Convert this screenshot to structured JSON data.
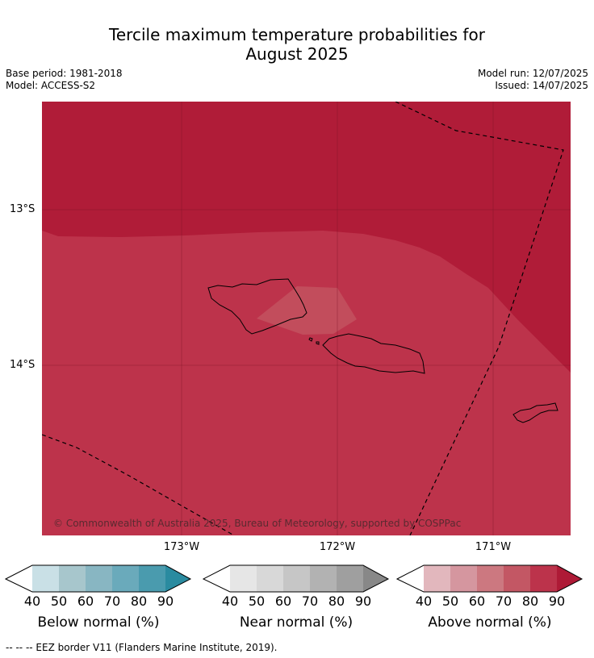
{
  "title_line1": "Tercile maximum temperature probabilities for",
  "title_line2": "August 2025",
  "base_period": "Base period: 1981-2018",
  "model": "Model: ACCESS-S2",
  "model_run": "Model run: 12/07/2025",
  "issued": "Issued: 14/07/2025",
  "map": {
    "lat_labels": [
      "13°S",
      "14°S"
    ],
    "lon_labels": [
      "173°W",
      "172°W",
      "171°W"
    ],
    "copyright": "© Commonwealth of Australia 2025, Bureau of Meteorology, supported by COSPPac",
    "fill_colors": {
      "above_90": "#b01c38",
      "above_80": "#bd334b",
      "above_70": "#c24d5c"
    }
  },
  "colorbars": [
    {
      "title": "Below normal (%)",
      "ticks": [
        "40",
        "50",
        "60",
        "70",
        "80",
        "90"
      ],
      "colors": [
        "#ffffff",
        "#c9e0e6",
        "#a7c6cc",
        "#88b6c2",
        "#6aaabb",
        "#4a9bae",
        "#2a8ba0"
      ]
    },
    {
      "title": "Near normal (%)",
      "ticks": [
        "40",
        "50",
        "60",
        "70",
        "80",
        "90"
      ],
      "colors": [
        "#ffffff",
        "#e6e6e6",
        "#d8d8d8",
        "#c6c6c6",
        "#b2b2b2",
        "#9f9f9f",
        "#888888"
      ]
    },
    {
      "title": "Above normal (%)",
      "ticks": [
        "40",
        "50",
        "60",
        "70",
        "80",
        "90"
      ],
      "colors": [
        "#ffffff",
        "#e2b7bd",
        "#d5969f",
        "#cc7880",
        "#c35764",
        "#bc334b",
        "#ae1a36"
      ]
    }
  ],
  "footer": "-- -- -- EEZ border V11 (Flanders Marine Institute, 2019)."
}
